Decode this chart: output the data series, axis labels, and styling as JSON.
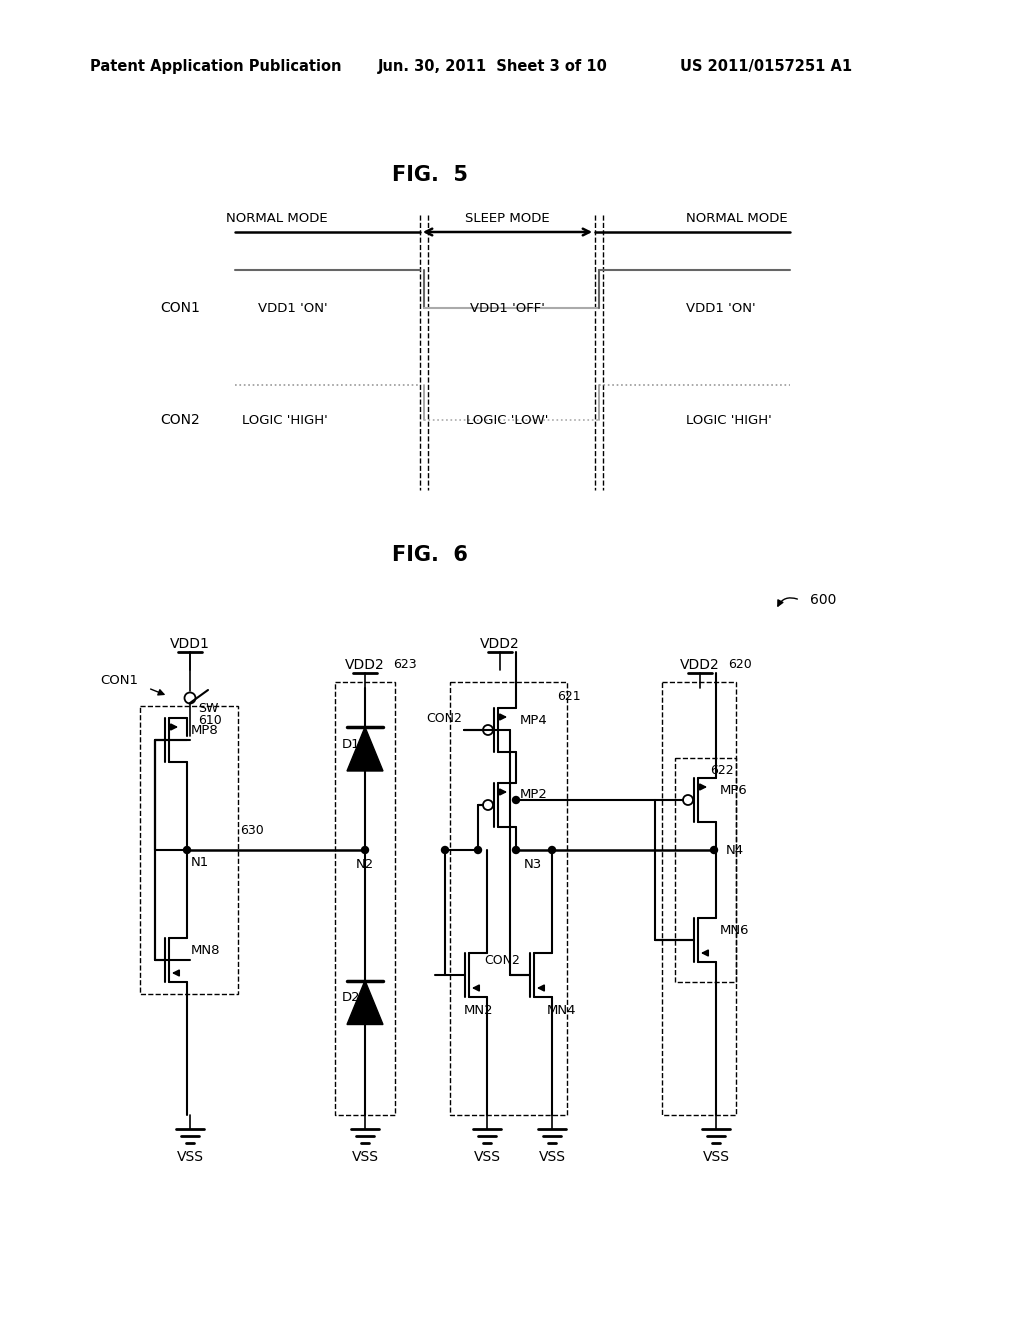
{
  "bg": "#ffffff",
  "hdr_left": "Patent Application Publication",
  "hdr_mid": "Jun. 30, 2011  Sheet 3 of 10",
  "hdr_right": "US 2011/0157251 A1",
  "fig5_title": "FIG.  5",
  "fig6_title": "FIG.  6",
  "fig6_ref": "600"
}
